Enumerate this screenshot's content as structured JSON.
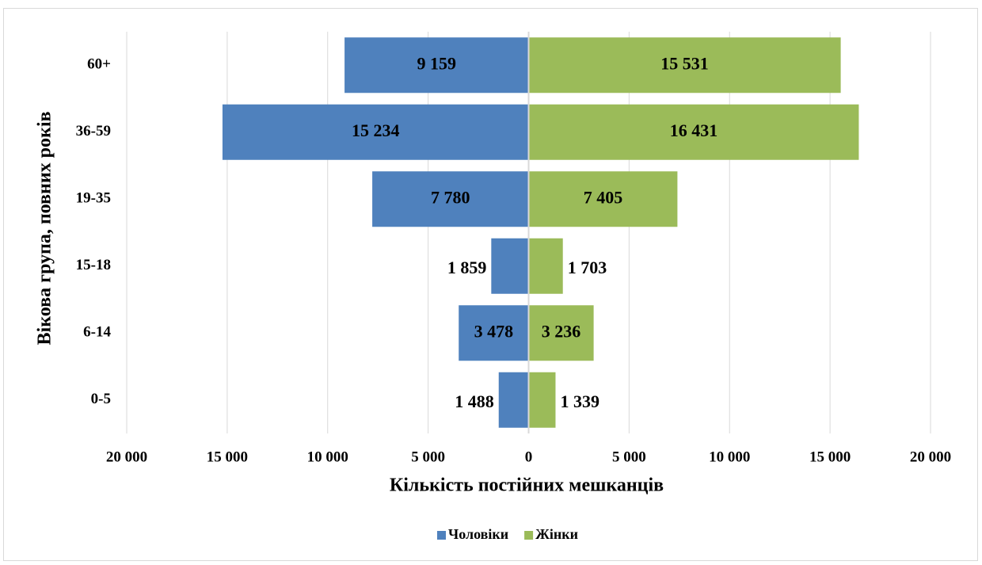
{
  "chart_data": {
    "type": "pyramid",
    "x_label": "Кількість постійних мешканців",
    "y_label": "Вікова група, повних років",
    "categories": [
      "60+",
      "36-59",
      "19-35",
      "15-18",
      "6-14",
      "0-5"
    ],
    "series": [
      {
        "name": "Чоловіки",
        "color": "#4f81bd",
        "values": [
          -9159,
          -15234,
          -7780,
          -1859,
          -3478,
          -1488
        ],
        "value_labels": [
          "9 159",
          "15 234",
          "7 780",
          "1 859",
          "3 478",
          "1 488"
        ]
      },
      {
        "name": "Жінки",
        "color": "#9bbb59",
        "values": [
          15531,
          16431,
          7405,
          1703,
          3236,
          1339
        ],
        "value_labels": [
          "15 531",
          "16 431",
          "7 405",
          "1 703",
          "3 236",
          "1 339"
        ]
      }
    ],
    "xlim": [
      -20000,
      20000
    ],
    "xticks": [
      {
        "value": -20000,
        "label": "20 000"
      },
      {
        "value": -15000,
        "label": "15 000"
      },
      {
        "value": -10000,
        "label": "10 000"
      },
      {
        "value": -5000,
        "label": "5 000"
      },
      0,
      {
        "value": 5000,
        "label": "5 000"
      },
      {
        "value": 10000,
        "label": "10 000"
      },
      {
        "value": 15000,
        "label": "15 000"
      },
      {
        "value": 20000,
        "label": "20 000"
      }
    ],
    "grid": true,
    "legend": "bottom"
  }
}
